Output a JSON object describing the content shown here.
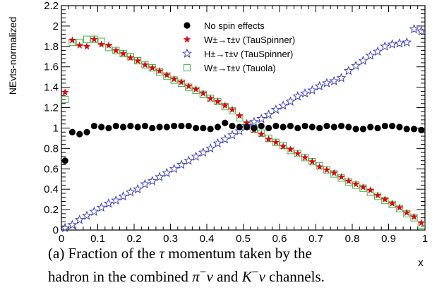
{
  "chart_data": {
    "type": "scatter",
    "xlabel": "x",
    "ylabel": "NEvts-normalized",
    "xlim": [
      0,
      1
    ],
    "ylim": [
      0,
      2.2
    ],
    "x_ticks": [
      "0",
      "0.1",
      "0.2",
      "0.3",
      "0.4",
      "0.5",
      "0.6",
      "0.7",
      "0.8",
      "0.9",
      "1"
    ],
    "y_ticks": [
      "0",
      "0.2",
      "0.4",
      "0.6",
      "0.8",
      "1",
      "1.2",
      "1.4",
      "1.6",
      "1.8",
      "2",
      "2.2"
    ],
    "legend_position": "top-right",
    "x": [
      0.01,
      0.03,
      0.05,
      0.07,
      0.09,
      0.11,
      0.13,
      0.15,
      0.17,
      0.19,
      0.21,
      0.23,
      0.25,
      0.27,
      0.29,
      0.31,
      0.33,
      0.35,
      0.37,
      0.39,
      0.41,
      0.43,
      0.45,
      0.47,
      0.49,
      0.51,
      0.53,
      0.55,
      0.57,
      0.59,
      0.61,
      0.63,
      0.65,
      0.67,
      0.69,
      0.71,
      0.73,
      0.75,
      0.77,
      0.79,
      0.81,
      0.83,
      0.85,
      0.87,
      0.89,
      0.91,
      0.93,
      0.95,
      0.97,
      0.99
    ],
    "series": [
      {
        "name": "No spin effects",
        "marker": "filled-circle",
        "color": "#000000",
        "values": [
          0.68,
          0.96,
          0.94,
          0.96,
          1.02,
          1.01,
          1.0,
          1.02,
          1.01,
          1.02,
          1.01,
          1.02,
          1.0,
          1.01,
          1.01,
          1.02,
          1.02,
          1.02,
          1.0,
          1.0,
          0.99,
          1.01,
          1.05,
          1.02,
          1.01,
          1.01,
          1.0,
          1.02,
          1.0,
          1.02,
          1.01,
          1.02,
          1.0,
          1.02,
          1.01,
          1.0,
          1.02,
          1.01,
          1.02,
          1.01,
          0.99,
          0.99,
          1.01,
          1.0,
          1.02,
          1.02,
          1.01,
          0.99,
          0.99,
          0.98
        ]
      },
      {
        "name": "W±→τ±ν (TauSpinner)",
        "marker": "filled-star",
        "color": "#e8000b",
        "values": [
          1.35,
          1.86,
          1.81,
          1.8,
          1.87,
          1.82,
          1.81,
          1.76,
          1.73,
          1.69,
          1.66,
          1.62,
          1.59,
          1.56,
          1.52,
          1.48,
          1.45,
          1.41,
          1.38,
          1.34,
          1.29,
          1.26,
          1.22,
          1.18,
          1.12,
          1.05,
          0.98,
          0.94,
          0.89,
          0.86,
          0.82,
          0.79,
          0.75,
          0.71,
          0.67,
          0.62,
          0.59,
          0.56,
          0.52,
          0.48,
          0.45,
          0.42,
          0.39,
          0.34,
          0.3,
          0.26,
          0.22,
          0.17,
          0.13,
          0.07
        ]
      },
      {
        "name": "H±→τ±ν (TauSpinner)",
        "marker": "open-star",
        "color": "#3b3fbf",
        "values": [
          0.02,
          0.05,
          0.1,
          0.14,
          0.18,
          0.22,
          0.26,
          0.29,
          0.33,
          0.37,
          0.4,
          0.45,
          0.48,
          0.52,
          0.56,
          0.6,
          0.64,
          0.68,
          0.72,
          0.76,
          0.8,
          0.85,
          0.89,
          0.93,
          0.97,
          1.02,
          1.06,
          1.09,
          1.13,
          1.18,
          1.22,
          1.26,
          1.31,
          1.34,
          1.37,
          1.41,
          1.44,
          1.46,
          1.49,
          1.56,
          1.61,
          1.66,
          1.71,
          1.75,
          1.8,
          1.82,
          1.83,
          1.84,
          1.97,
          1.95
        ]
      },
      {
        "name": "W±→τ±ν (Tauola)",
        "marker": "open-square",
        "color": "#3cb84a",
        "values": [
          1.28,
          1.84,
          1.84,
          1.87,
          1.87,
          1.85,
          1.79,
          1.76,
          1.73,
          1.7,
          1.66,
          1.62,
          1.59,
          1.55,
          1.51,
          1.47,
          1.44,
          1.4,
          1.37,
          1.33,
          1.29,
          1.26,
          1.21,
          1.17,
          1.1,
          1.03,
          0.99,
          0.95,
          0.9,
          0.86,
          0.83,
          0.78,
          0.75,
          0.71,
          0.67,
          0.63,
          0.59,
          0.55,
          0.51,
          0.47,
          0.44,
          0.41,
          0.37,
          0.33,
          0.29,
          0.25,
          0.21,
          0.16,
          0.12,
          0.05
        ]
      }
    ]
  },
  "caption": {
    "line1_prefix": "(a) Fraction of the ",
    "line1_tau": "τ",
    "line1_suffix": " momentum taken by the",
    "line2_prefix": "hadron in the combined ",
    "line2_pi": "π",
    "line2_sup1": "−",
    "line2_nu1": "ν",
    "line2_mid": " and ",
    "line2_k": "K",
    "line2_sup2": "−",
    "line2_nu2": "ν",
    "line2_suffix": " channels."
  }
}
